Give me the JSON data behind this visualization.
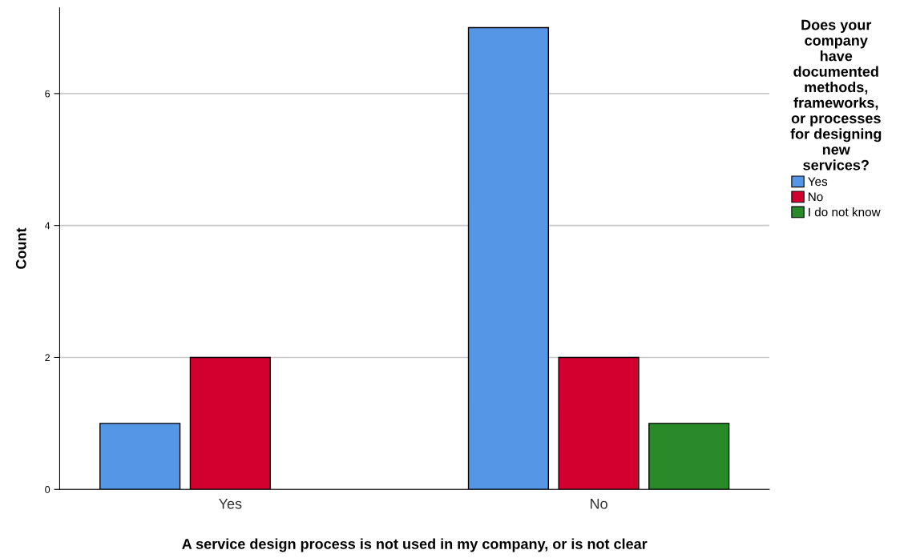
{
  "chart_data": {
    "type": "bar",
    "categories": [
      "Yes",
      "No"
    ],
    "series": [
      {
        "name": "Yes",
        "color": "#5596e6",
        "values": [
          1,
          7
        ]
      },
      {
        "name": "No",
        "color": "#d3002f",
        "values": [
          2,
          2
        ]
      },
      {
        "name": "I do not know",
        "color": "#298a2a",
        "values": [
          null,
          1
        ]
      }
    ],
    "xlabel": "A service design process is not used in my company, or is not clear",
    "ylabel": "Count",
    "legend_title": "Does your\ncompany\nhave\ndocumented\nmethods,\nframeworks,\nor processes\nfor designing\nnew\nservices?",
    "ylim": [
      0,
      7.3
    ],
    "yticks": [
      0,
      2,
      4,
      6
    ],
    "grid": "y",
    "legend": "right"
  }
}
